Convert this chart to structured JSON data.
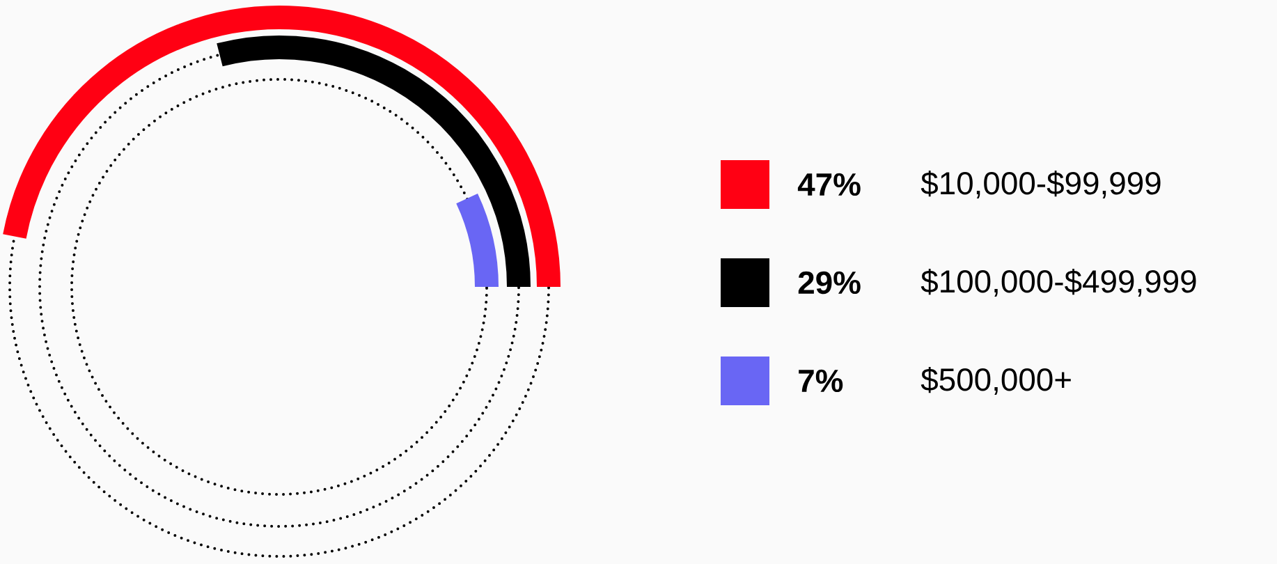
{
  "chart_data": {
    "type": "other",
    "categories": [
      "$10,000-$99,999",
      "$100,000-$499,999",
      "$500,000+"
    ],
    "values": [
      47,
      29,
      7
    ],
    "value_labels": [
      "47%",
      "29%",
      "7%"
    ],
    "colors": [
      "#ff0013",
      "#000000",
      "#6966f4"
    ]
  }
}
